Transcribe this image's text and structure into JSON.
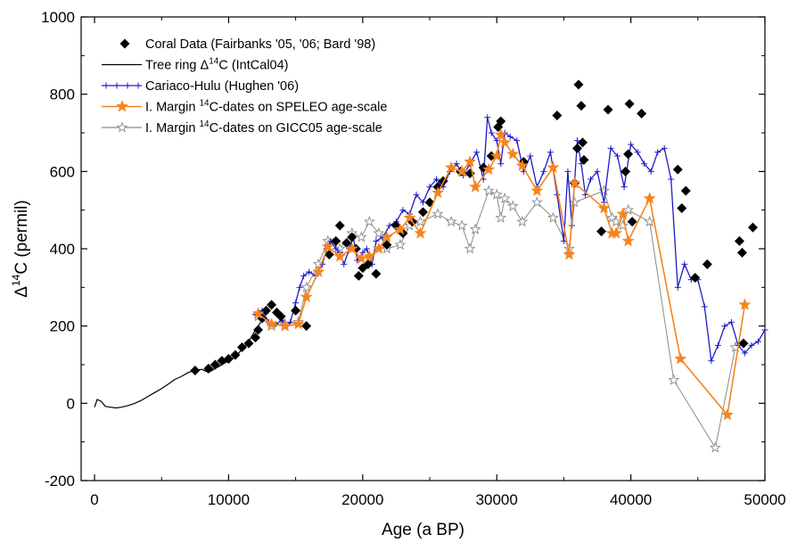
{
  "chart_data": {
    "type": "scatter",
    "title": "",
    "xlabel": "Age (a BP)",
    "ylabel_parts": {
      "prefix": "Δ",
      "sup": "14",
      "suffix": "C (permil)"
    },
    "xlim": [
      -1000,
      50000
    ],
    "ylim": [
      -200,
      1000
    ],
    "x_ticks": [
      0,
      10000,
      20000,
      30000,
      40000,
      50000
    ],
    "y_ticks": [
      -200,
      0,
      200,
      400,
      600,
      800,
      1000
    ],
    "grid": false,
    "legend_position": "top-left",
    "legend": [
      {
        "key": "coral",
        "marker": "diamond",
        "color": "#000000",
        "parts": [
          {
            "t": "Coral Data (Fairbanks '05, '06; Bard '98)"
          }
        ]
      },
      {
        "key": "tree",
        "marker": "line",
        "color": "#000000",
        "parts": [
          {
            "t": "Tree ring Δ"
          },
          {
            "t": "14",
            "sup": true
          },
          {
            "t": "C (IntCal04)"
          }
        ]
      },
      {
        "key": "cariaco",
        "marker": "plus-line",
        "color": "#1c1cc8",
        "parts": [
          {
            "t": "Cariaco-Hulu (Hughen '06)"
          }
        ]
      },
      {
        "key": "speleo",
        "marker": "star-filled-line",
        "color": "#f5841f",
        "parts": [
          {
            "t": "I. Margin "
          },
          {
            "t": "14",
            "sup": true
          },
          {
            "t": "C-dates on SPELEO age-scale"
          }
        ]
      },
      {
        "key": "gicc",
        "marker": "star-open-line",
        "color": "#8a8a8a",
        "parts": [
          {
            "t": "I. Margin "
          },
          {
            "t": "14",
            "sup": true
          },
          {
            "t": "C-dates on GICC05 age-scale"
          }
        ]
      }
    ],
    "series": [
      {
        "key": "tree",
        "color": "#000000",
        "x": [
          0,
          200,
          500,
          800,
          1200,
          1600,
          2000,
          2500,
          3000,
          3500,
          4000,
          4500,
          5000,
          5500,
          6000,
          6500,
          7000,
          7500,
          8000,
          8500,
          9000,
          9500,
          10000,
          10500,
          11000,
          11500,
          12000,
          12400
        ],
        "y": [
          -10,
          10,
          5,
          -8,
          -10,
          -12,
          -10,
          -6,
          0,
          8,
          18,
          28,
          38,
          50,
          62,
          70,
          80,
          85,
          88,
          80,
          90,
          100,
          110,
          120,
          140,
          160,
          190,
          210
        ]
      },
      {
        "key": "cariaco",
        "color": "#1c1cc8",
        "x": [
          12000,
          12500,
          13000,
          13500,
          14000,
          14300,
          14600,
          15000,
          15300,
          15600,
          16000,
          16500,
          17000,
          17300,
          17600,
          18000,
          18300,
          18600,
          19000,
          19300,
          19600,
          20000,
          20300,
          20700,
          21000,
          21500,
          22000,
          22500,
          23000,
          23500,
          24000,
          24500,
          25000,
          25500,
          26000,
          26500,
          27000,
          27500,
          28000,
          28500,
          29000,
          29300,
          29600,
          30000,
          30300,
          30600,
          31000,
          31500,
          32000,
          32500,
          33000,
          33500,
          34000,
          34500,
          35000,
          35300,
          35600,
          36000,
          36300,
          36600,
          37000,
          37500,
          38000,
          38500,
          39000,
          39500,
          40000,
          40500,
          41000,
          41500,
          42000,
          42500,
          43000,
          43500,
          44000,
          44500,
          45000,
          45500,
          46000,
          46500,
          47000,
          47500,
          48000,
          48500,
          49000,
          49500,
          50000
        ],
        "y": [
          230,
          240,
          210,
          205,
          215,
          200,
          210,
          260,
          300,
          330,
          340,
          330,
          360,
          400,
          420,
          400,
          390,
          360,
          400,
          430,
          370,
          390,
          400,
          360,
          420,
          430,
          460,
          470,
          500,
          490,
          540,
          520,
          560,
          580,
          560,
          600,
          620,
          590,
          620,
          650,
          580,
          740,
          700,
          680,
          620,
          700,
          690,
          680,
          600,
          640,
          560,
          600,
          650,
          540,
          420,
          600,
          460,
          680,
          620,
          540,
          580,
          600,
          520,
          660,
          640,
          560,
          670,
          650,
          620,
          600,
          650,
          660,
          580,
          300,
          360,
          320,
          320,
          250,
          110,
          150,
          200,
          210,
          150,
          130,
          150,
          160,
          190
        ]
      },
      {
        "key": "speleo",
        "color": "#f5841f",
        "x": [
          12200,
          13200,
          14200,
          15200,
          15800,
          16700,
          17400,
          18300,
          19200,
          19900,
          20500,
          21200,
          21800,
          22800,
          23500,
          24300,
          25600,
          26600,
          27400,
          28000,
          28400,
          29400,
          30000,
          30300,
          30600,
          31200,
          31900,
          33000,
          34200,
          35400,
          35800,
          38000,
          38600,
          38900,
          39400,
          39800,
          41400,
          43700,
          47200,
          48500
        ],
        "y": [
          232,
          205,
          200,
          205,
          275,
          340,
          405,
          380,
          400,
          375,
          380,
          400,
          430,
          450,
          480,
          440,
          545,
          610,
          600,
          625,
          560,
          605,
          640,
          695,
          675,
          645,
          615,
          550,
          610,
          385,
          570,
          505,
          440,
          440,
          490,
          420,
          530,
          115,
          -30,
          255
        ]
      },
      {
        "key": "gicc",
        "color": "#8a8a8a",
        "x": [
          12200,
          13200,
          14200,
          15200,
          15800,
          16700,
          17400,
          18300,
          19200,
          19900,
          20500,
          21200,
          21800,
          22800,
          23500,
          24300,
          25600,
          26600,
          27400,
          28000,
          28400,
          29400,
          30000,
          30300,
          30600,
          31200,
          31900,
          33000,
          34200,
          35400,
          35800,
          38000,
          38600,
          38900,
          39400,
          39800,
          41400,
          43200,
          46300,
          47800
        ],
        "y": [
          225,
          200,
          205,
          210,
          300,
          360,
          420,
          400,
          440,
          430,
          470,
          440,
          400,
          410,
          460,
          470,
          490,
          470,
          460,
          400,
          450,
          550,
          540,
          480,
          530,
          510,
          470,
          520,
          480,
          400,
          520,
          550,
          480,
          470,
          460,
          500,
          470,
          60,
          -115,
          145
        ]
      },
      {
        "key": "coral",
        "color": "#000000",
        "x": [
          7500,
          8500,
          9000,
          9500,
          10000,
          10500,
          11000,
          11500,
          12000,
          12200,
          12500,
          12800,
          13200,
          13600,
          13900,
          15000,
          15800,
          17500,
          18000,
          18300,
          18800,
          19200,
          19500,
          19700,
          20000,
          20400,
          21000,
          21800,
          22500,
          23000,
          23700,
          24500,
          25000,
          25600,
          26000,
          27300,
          28000,
          29000,
          29600,
          30100,
          30300,
          32000,
          34500,
          35800,
          36000,
          36100,
          36300,
          36400,
          36500,
          37800,
          38300,
          39600,
          39800,
          39900,
          40100,
          40800,
          43500,
          43800,
          44100,
          44800,
          45700,
          48100,
          48300,
          48400,
          49100
        ],
        "y": [
          85,
          90,
          100,
          110,
          115,
          125,
          145,
          155,
          170,
          190,
          220,
          240,
          255,
          235,
          225,
          240,
          200,
          385,
          420,
          460,
          415,
          430,
          400,
          330,
          350,
          360,
          335,
          410,
          460,
          440,
          470,
          495,
          520,
          560,
          575,
          600,
          595,
          610,
          640,
          715,
          730,
          625,
          745,
          570,
          660,
          825,
          770,
          675,
          630,
          445,
          760,
          600,
          645,
          775,
          470,
          750,
          605,
          505,
          550,
          325,
          360,
          420,
          390,
          155,
          455
        ]
      }
    ]
  }
}
